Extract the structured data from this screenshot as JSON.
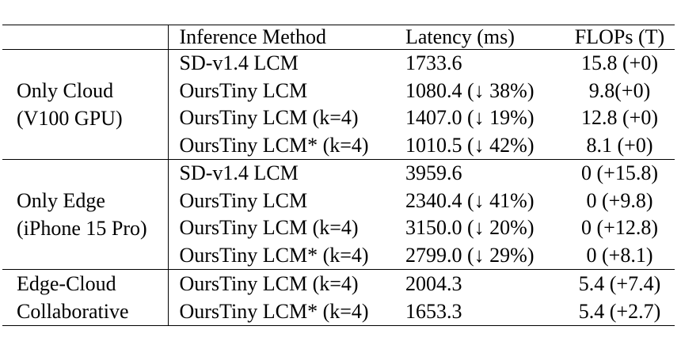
{
  "table": {
    "columns": [
      {
        "label": ""
      },
      {
        "label": "Inference Method"
      },
      {
        "label": "Latency (ms)"
      },
      {
        "label": "FLOPs (T)"
      }
    ],
    "sections": [
      {
        "group_line1": "Only Cloud",
        "group_line2": "(V100 GPU)",
        "rows": [
          {
            "method": "SD-v1.4 LCM",
            "latency": "1733.6",
            "flops": "15.8 (+0)"
          },
          {
            "method": "OursTiny LCM",
            "latency": "1080.4 (↓ 38%)",
            "flops": "9.8(+0)"
          },
          {
            "method": "OursTiny LCM (k=4)",
            "latency": "1407.0 (↓ 19%)",
            "flops": "12.8 (+0)"
          },
          {
            "method": "OursTiny LCM* (k=4)",
            "latency": "1010.5 (↓ 42%)",
            "flops": "8.1 (+0)"
          }
        ]
      },
      {
        "group_line1": "Only Edge",
        "group_line2": "(iPhone 15 Pro)",
        "rows": [
          {
            "method": "SD-v1.4 LCM",
            "latency": "3959.6",
            "flops": "0 (+15.8)"
          },
          {
            "method": "OursTiny LCM",
            "latency": "2340.4 (↓ 41%)",
            "flops": "0 (+9.8)"
          },
          {
            "method": "OursTiny LCM (k=4)",
            "latency": "3150.0 (↓ 20%)",
            "flops": "0 (+12.8)"
          },
          {
            "method": "OursTiny LCM* (k=4)",
            "latency": "2799.0 (↓ 29%)",
            "flops": "0 (+8.1)"
          }
        ]
      },
      {
        "group_line1": "Edge-Cloud",
        "group_line2": "Collaborative",
        "rows": [
          {
            "method": "OursTiny LCM (k=4)",
            "latency": "2004.3",
            "flops": "5.4 (+7.4)"
          },
          {
            "method": "OursTiny LCM* (k=4)",
            "latency": "1653.3",
            "flops": "5.4 (+2.7)"
          }
        ]
      }
    ],
    "colors": {
      "rule": "#000000",
      "background": "#ffffff",
      "text": "#000000"
    }
  }
}
